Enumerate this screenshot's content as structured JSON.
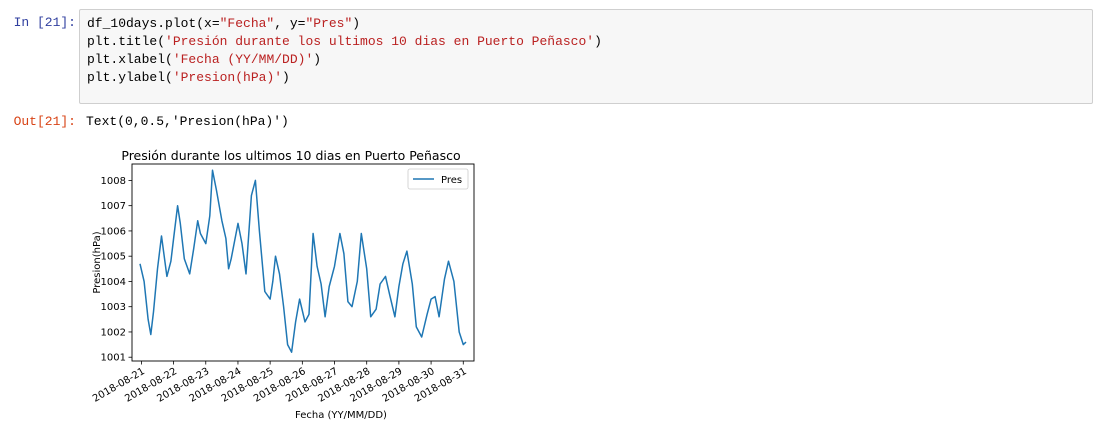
{
  "cells": {
    "input_prompt": "In [21]:",
    "code_lines": [
      [
        {
          "t": "df_10days.plot(x=",
          "c": ""
        },
        {
          "t": "\"Fecha\"",
          "c": "str"
        },
        {
          "t": ", y=",
          "c": ""
        },
        {
          "t": "\"Pres\"",
          "c": "str"
        },
        {
          "t": ")",
          "c": ""
        }
      ],
      [
        {
          "t": "plt.title(",
          "c": ""
        },
        {
          "t": "'Presión durante los ultimos 10 dias en Puerto Peñasco'",
          "c": "str"
        },
        {
          "t": ")",
          "c": ""
        }
      ],
      [
        {
          "t": "plt.xlabel(",
          "c": ""
        },
        {
          "t": "'Fecha (YY/MM/DD)'",
          "c": "str"
        },
        {
          "t": ")",
          "c": ""
        }
      ],
      [
        {
          "t": "plt.ylabel(",
          "c": ""
        },
        {
          "t": "'Presion(hPa)'",
          "c": "str"
        },
        {
          "t": ")",
          "c": ""
        }
      ]
    ],
    "output_prompt": "Out[21]:",
    "output_text": "Text(0,0.5,'Presion(hPa)')"
  },
  "colors": {
    "line": "#1f77b4",
    "in_prompt": "#303f9f",
    "out_prompt": "#d84315",
    "string": "#ba2121"
  },
  "chart_data": {
    "type": "line",
    "title": "Presión durante los ultimos 10 dias en Puerto Peñasco",
    "xlabel": "Fecha (YY/MM/DD)",
    "ylabel": "Presion(hPa)",
    "x_ticks": [
      "2018-08-21",
      "2018-08-22",
      "2018-08-23",
      "2018-08-24",
      "2018-08-25",
      "2018-08-26",
      "2018-08-27",
      "2018-08-28",
      "2018-08-29",
      "2018-08-30",
      "2018-08-31"
    ],
    "y_ticks": [
      1001,
      1002,
      1003,
      1004,
      1005,
      1006,
      1007,
      1008
    ],
    "xlim": [
      "2018-08-20T17:00",
      "2018-08-31T08:00"
    ],
    "ylim": [
      1000.85,
      1008.65
    ],
    "legend_position": "upper right",
    "series": [
      {
        "name": "Pres",
        "x": [
          "2018-08-20T23:00",
          "2018-08-21T02:00",
          "2018-08-21T05:00",
          "2018-08-21T07:00",
          "2018-08-21T09:00",
          "2018-08-21T12:00",
          "2018-08-21T15:00",
          "2018-08-21T19:00",
          "2018-08-21T22:00",
          "2018-08-22T00:00",
          "2018-08-22T03:00",
          "2018-08-22T05:00",
          "2018-08-22T08:00",
          "2018-08-22T12:00",
          "2018-08-22T15:00",
          "2018-08-22T18:00",
          "2018-08-22T20:00",
          "2018-08-23T00:00",
          "2018-08-23T03:00",
          "2018-08-23T05:00",
          "2018-08-23T08:00",
          "2018-08-23T12:00",
          "2018-08-23T15:00",
          "2018-08-23T17:00",
          "2018-08-23T19:00",
          "2018-08-24T00:00",
          "2018-08-24T03:00",
          "2018-08-24T06:00",
          "2018-08-24T10:00",
          "2018-08-24T13:00",
          "2018-08-24T16:00",
          "2018-08-24T20:00",
          "2018-08-25T00:00",
          "2018-08-25T02:00",
          "2018-08-25T04:00",
          "2018-08-25T07:00",
          "2018-08-25T10:00",
          "2018-08-25T13:00",
          "2018-08-25T16:00",
          "2018-08-25T19:00",
          "2018-08-25T22:00",
          "2018-08-26T02:00",
          "2018-08-26T05:00",
          "2018-08-26T08:00",
          "2018-08-26T11:00",
          "2018-08-26T14:00",
          "2018-08-26T17:00",
          "2018-08-26T20:00",
          "2018-08-27T00:00",
          "2018-08-27T04:00",
          "2018-08-27T07:00",
          "2018-08-27T10:00",
          "2018-08-27T13:00",
          "2018-08-27T17:00",
          "2018-08-27T20:00",
          "2018-08-28T00:00",
          "2018-08-28T03:00",
          "2018-08-28T07:00",
          "2018-08-28T10:00",
          "2018-08-28T14:00",
          "2018-08-28T17:00",
          "2018-08-28T21:00",
          "2018-08-29T00:00",
          "2018-08-29T03:00",
          "2018-08-29T06:00",
          "2018-08-29T10:00",
          "2018-08-29T13:00",
          "2018-08-29T17:00",
          "2018-08-29T21:00",
          "2018-08-30T00:00",
          "2018-08-30T03:00",
          "2018-08-30T06:00",
          "2018-08-30T10:00",
          "2018-08-30T13:00",
          "2018-08-30T17:00",
          "2018-08-30T21:00",
          "2018-08-31T00:00",
          "2018-08-31T02:00"
        ],
        "y": [
          1004.7,
          1004.0,
          1002.5,
          1001.9,
          1002.8,
          1004.5,
          1005.8,
          1004.2,
          1004.8,
          1005.7,
          1007.0,
          1006.3,
          1004.9,
          1004.3,
          1005.3,
          1006.4,
          1005.9,
          1005.5,
          1006.6,
          1008.4,
          1007.6,
          1006.4,
          1005.7,
          1004.5,
          1004.9,
          1006.3,
          1005.5,
          1004.3,
          1007.4,
          1008.0,
          1006.0,
          1003.6,
          1003.3,
          1004.0,
          1005.0,
          1004.3,
          1003.0,
          1001.5,
          1001.2,
          1002.4,
          1003.3,
          1002.4,
          1002.7,
          1005.9,
          1004.6,
          1003.9,
          1002.6,
          1003.8,
          1004.6,
          1005.9,
          1005.1,
          1003.2,
          1003.0,
          1004.0,
          1005.9,
          1004.5,
          1002.6,
          1002.9,
          1003.9,
          1004.2,
          1003.5,
          1002.6,
          1003.8,
          1004.7,
          1005.2,
          1003.9,
          1002.2,
          1001.8,
          1002.7,
          1003.3,
          1003.4,
          1002.6,
          1004.1,
          1004.8,
          1004.0,
          1002.0,
          1001.5,
          1001.6
        ]
      }
    ]
  }
}
